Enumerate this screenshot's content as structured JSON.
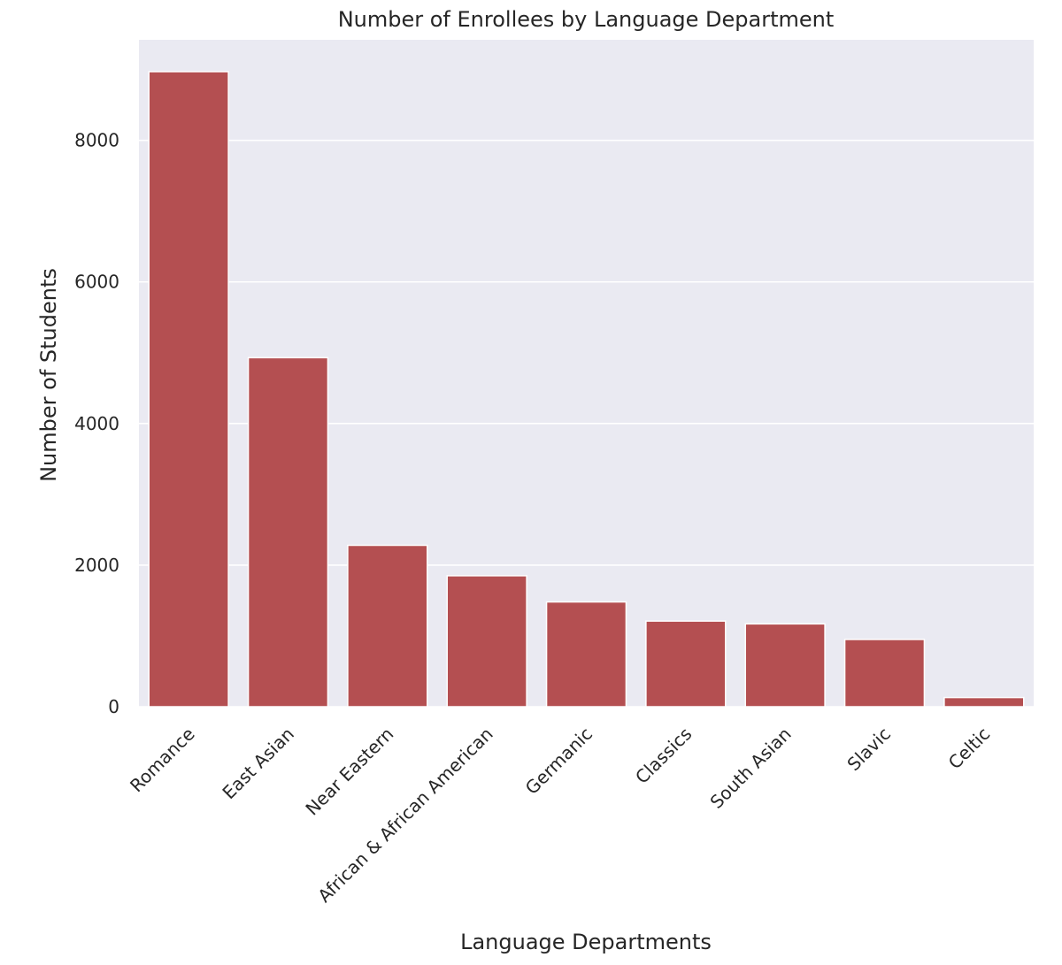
{
  "chart_data": {
    "type": "bar",
    "title": "Number of Enrollees by Language Department",
    "xlabel": "Language Departments",
    "ylabel": "Number of Students",
    "categories": [
      "Romance",
      "East Asian",
      "Near Eastern",
      "African & African American",
      "Germanic",
      "Classics",
      "South Asian",
      "Slavic",
      "Celtic"
    ],
    "values": [
      8970,
      4930,
      2280,
      1850,
      1480,
      1210,
      1170,
      950,
      130
    ],
    "ylim": [
      0,
      9420
    ],
    "yticks": [
      0,
      2000,
      4000,
      6000,
      8000
    ],
    "ytick_labels": [
      "0",
      "2000",
      "4000",
      "6000",
      "8000"
    ],
    "grid": true,
    "colors": {
      "bar": "#b44f51",
      "plot_background": "#eaeaf2",
      "grid": "#ffffff",
      "text": "#262626"
    }
  }
}
